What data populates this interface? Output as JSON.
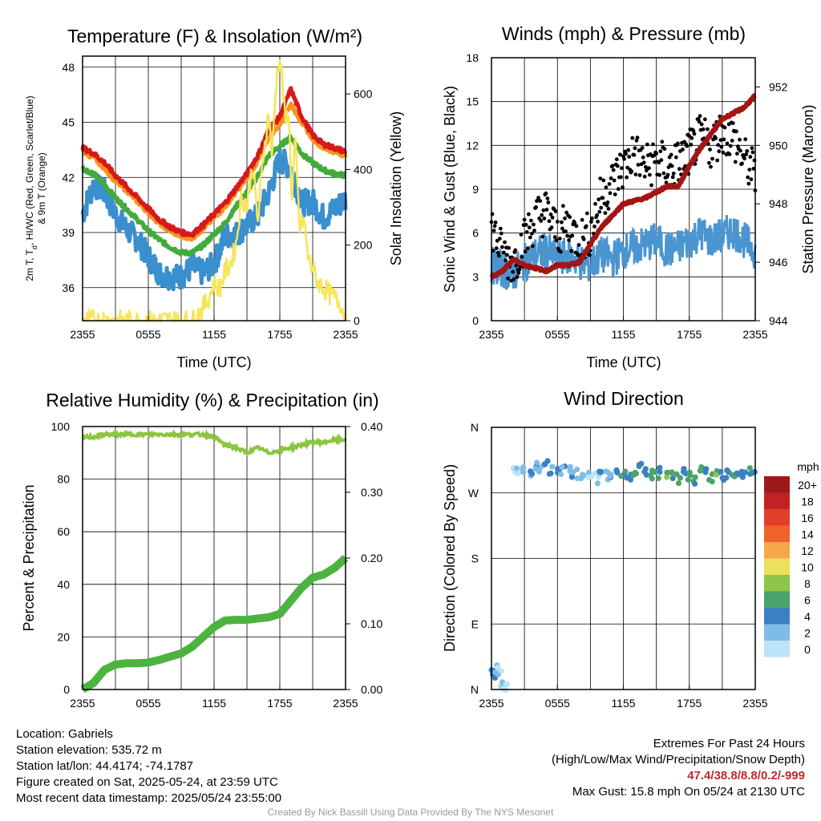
{
  "colors": {
    "temp": "#d7191c",
    "dewpoint": "#3a8fcf",
    "wind_chill": "#f46d2a",
    "t9m": "#f7941e",
    "heat_index_green": "#41ab3c",
    "solar": "#f7e55a",
    "wind": "#4a95d0",
    "gust": "#000000",
    "pressure": "#a31515",
    "rh": "#8bc541",
    "precip": "#4cb33f",
    "extremes": "#c2272d",
    "credit": "#999999"
  },
  "time_ticks": [
    "2355",
    "0555",
    "1155",
    "1755",
    "2355"
  ],
  "chart_data": [
    {
      "type": "line",
      "title": "Temperature (F) & Insolation (W/m²)",
      "xlabel": "Time (UTC)",
      "ylabel_lines": [
        "2m T, T",
        "d",
        ", HI/WC (Red, Green, Scarlet/Blue)",
        "& 9m T (Orange)"
      ],
      "y2label": "Solar Insolation (Yellow)",
      "x_ticks": [
        "2355",
        "0555",
        "1155",
        "1755",
        "2355"
      ],
      "ylim": [
        34.2,
        48.6
      ],
      "y_ticks": [
        36,
        39,
        42,
        45,
        48
      ],
      "y2lim": [
        0,
        700
      ],
      "y2_ticks": [
        0,
        200,
        400,
        600
      ],
      "x_hours": [
        0,
        1,
        2,
        3,
        4,
        5,
        6,
        7,
        8,
        9,
        10,
        11,
        12,
        13,
        14,
        15,
        16,
        17,
        18,
        19,
        20,
        21,
        22,
        23,
        24
      ],
      "series": [
        {
          "name": "2m T",
          "color": "#d7191c",
          "values": [
            43.6,
            43.3,
            42.8,
            42.1,
            41.5,
            40.9,
            40.3,
            39.7,
            39.3,
            39.0,
            38.9,
            39.4,
            40.0,
            40.6,
            41.4,
            42.2,
            43.2,
            44.6,
            45.3,
            46.8,
            45.3,
            44.3,
            43.8,
            43.6,
            43.4
          ]
        },
        {
          "name": "9m T",
          "color": "#f7941e",
          "values": [
            43.4,
            43.1,
            42.5,
            41.8,
            41.3,
            40.7,
            40.1,
            39.5,
            39.1,
            38.8,
            38.7,
            39.2,
            39.8,
            40.4,
            41.2,
            42.0,
            42.9,
            44.2,
            44.9,
            46.0,
            45.0,
            44.1,
            43.6,
            43.4,
            43.2
          ]
        },
        {
          "name": "HI/WC",
          "color": "#41ab3c",
          "values": [
            42.5,
            42.2,
            41.6,
            40.9,
            40.3,
            39.7,
            39.1,
            38.6,
            38.2,
            37.9,
            37.9,
            38.3,
            38.9,
            39.5,
            40.4,
            41.2,
            42.1,
            43.2,
            43.7,
            44.2,
            43.3,
            42.8,
            42.4,
            42.2,
            42.1
          ]
        },
        {
          "name": "Td",
          "color": "#3a8fcf",
          "values": [
            40.0,
            41.6,
            41.2,
            40.0,
            39.2,
            38.6,
            37.7,
            36.8,
            36.6,
            36.6,
            37.1,
            36.8,
            37.3,
            38.8,
            38.9,
            39.4,
            39.9,
            41.2,
            43.0,
            42.5,
            40.6,
            40.7,
            39.8,
            40.3,
            40.8
          ]
        }
      ],
      "solar": {
        "name": "Solar Insolation",
        "color": "#f7e55a",
        "x_hours": [
          0,
          6,
          7,
          8,
          9,
          10,
          11,
          11.5,
          12,
          12.5,
          13,
          13.5,
          14,
          14.5,
          15,
          15.5,
          16,
          16.5,
          17,
          17.3,
          17.6,
          17.9,
          18.2,
          18.5,
          18.8,
          19.1,
          19.4,
          19.8,
          20.2,
          20.6,
          21,
          21.5,
          22,
          22.5,
          23,
          23.5,
          24
        ],
        "values": [
          0,
          0,
          0,
          0,
          0,
          0,
          35,
          60,
          100,
          85,
          130,
          150,
          200,
          330,
          300,
          420,
          260,
          440,
          550,
          430,
          600,
          700,
          650,
          520,
          560,
          320,
          480,
          240,
          270,
          160,
          140,
          100,
          90,
          70,
          60,
          50,
          10
        ]
      }
    },
    {
      "type": "line",
      "title": "Winds (mph) & Pressure (mb)",
      "xlabel": "Time (UTC)",
      "ylabel": "Sonic Wind & Gust (Blue, Black)",
      "y2label": "Station Pressure (Maroon)",
      "x_ticks": [
        "2355",
        "0555",
        "1155",
        "1755",
        "2355"
      ],
      "ylim": [
        0,
        18
      ],
      "y_ticks": [
        0,
        3,
        6,
        9,
        12,
        15,
        18
      ],
      "y2lim": [
        944,
        953
      ],
      "y2_ticks": [
        944,
        946,
        948,
        950,
        952
      ],
      "x_hours": [
        0,
        1,
        2,
        3,
        4,
        5,
        6,
        7,
        8,
        9,
        10,
        11,
        12,
        13,
        14,
        15,
        16,
        17,
        18,
        19,
        20,
        21,
        22,
        23,
        24
      ],
      "series": [
        {
          "name": "Sonic Wind",
          "color": "#4a95d0",
          "values": [
            3.8,
            3.5,
            3.2,
            4.0,
            4.5,
            4.8,
            4.2,
            4.5,
            4.0,
            3.8,
            4.5,
            4.2,
            4.8,
            5.0,
            5.2,
            5.5,
            4.8,
            5.0,
            5.5,
            6.0,
            5.5,
            5.8,
            6.2,
            5.5,
            4.8
          ]
        },
        {
          "name": "Gust",
          "color": "#000000",
          "values": [
            6.5,
            4.5,
            4.0,
            5.5,
            7.0,
            7.5,
            6.0,
            6.5,
            5.5,
            6.0,
            8.5,
            9.5,
            10.5,
            11.5,
            10.5,
            11.0,
            10.5,
            10.8,
            11.5,
            12.5,
            12.0,
            13.0,
            12.5,
            11.0,
            10.0
          ]
        },
        {
          "name": "Station Pressure",
          "color": "#a31515",
          "values": [
            945.5,
            945.7,
            946.1,
            945.9,
            945.8,
            945.7,
            945.9,
            945.9,
            946.0,
            946.6,
            947.2,
            947.6,
            948.0,
            948.1,
            948.2,
            948.4,
            948.6,
            948.6,
            949.3,
            949.9,
            950.4,
            950.9,
            951.1,
            951.3,
            951.7
          ]
        }
      ]
    },
    {
      "type": "line",
      "title": "Relative Humidity (%) & Precipitation (in)",
      "xlabel": "",
      "ylabel": "Percent & Precipitation",
      "x_ticks": [
        "2355",
        "0555",
        "1155",
        "1755",
        "2355"
      ],
      "ylim": [
        0,
        100
      ],
      "y_ticks": [
        0,
        20,
        40,
        60,
        80,
        100
      ],
      "y2lim": [
        0,
        0.4
      ],
      "y2_ticks": [
        "0.00",
        "0.10",
        "0.20",
        "0.30",
        "0.40"
      ],
      "x_hours": [
        0,
        1,
        2,
        3,
        4,
        5,
        6,
        7,
        8,
        9,
        10,
        11,
        12,
        13,
        14,
        15,
        16,
        17,
        18,
        19,
        20,
        21,
        22,
        23,
        24
      ],
      "series": [
        {
          "name": "RH",
          "color": "#8bc541",
          "values": [
            96,
            96,
            97,
            97,
            97,
            97,
            97,
            97,
            97,
            97,
            97,
            97,
            96,
            93,
            92,
            90,
            92,
            90,
            91,
            92,
            93,
            94,
            94,
            95,
            95
          ]
        },
        {
          "name": "Precipitation",
          "color": "#4cb33f",
          "values": [
            0.0,
            0.01,
            0.03,
            0.038,
            0.04,
            0.04,
            0.041,
            0.045,
            0.05,
            0.055,
            0.065,
            0.08,
            0.095,
            0.105,
            0.106,
            0.106,
            0.108,
            0.11,
            0.115,
            0.135,
            0.155,
            0.17,
            0.175,
            0.185,
            0.2
          ]
        }
      ]
    },
    {
      "type": "scatter",
      "title": "Wind Direction",
      "ylabel": "Direction (Colored By Speed)",
      "x_ticks": [
        "2355",
        "0555",
        "1155",
        "1755",
        "2355"
      ],
      "y_ticks": [
        "N",
        "E",
        "S",
        "W",
        "N"
      ],
      "colorbar_label": "mph",
      "colorbar": [
        {
          "label": "20+",
          "color": "#9e1a1a"
        },
        {
          "label": "18",
          "color": "#c42222"
        },
        {
          "label": "16",
          "color": "#e0402a"
        },
        {
          "label": "14",
          "color": "#f0622b"
        },
        {
          "label": "12",
          "color": "#f7a64a"
        },
        {
          "label": "10",
          "color": "#ede05a"
        },
        {
          "label": "8",
          "color": "#8ec64a"
        },
        {
          "label": "6",
          "color": "#4ba56b"
        },
        {
          "label": "4",
          "color": "#3b80c2"
        },
        {
          "label": "2",
          "color": "#7fbde6"
        },
        {
          "label": "0",
          "color": "#bde3f7"
        }
      ],
      "x_hours": [
        0.1,
        0.3,
        0.5,
        0.7,
        0.9,
        1.1,
        1.3,
        2.0,
        2.5,
        3.0,
        3.5,
        4.0,
        4.5,
        5.0,
        5.5,
        6.0,
        6.5,
        7.0,
        7.5,
        8.0,
        8.5,
        9.0,
        9.5,
        10.0,
        10.5,
        11.0,
        11.5,
        12.0,
        12.5,
        13.0,
        13.5,
        14.0,
        14.5,
        15.0,
        15.5,
        16.0,
        16.5,
        17.0,
        17.5,
        18.0,
        18.5,
        19.0,
        19.5,
        20.0,
        20.5,
        21.0,
        21.5,
        22.0,
        22.5,
        23.0,
        23.5,
        23.9
      ],
      "directions": [
        20,
        24,
        18,
        28,
        8,
        5,
        3,
        305,
        300,
        302,
        298,
        305,
        302,
        308,
        302,
        303,
        300,
        302,
        298,
        296,
        300,
        295,
        290,
        300,
        295,
        292,
        300,
        298,
        294,
        297,
        305,
        300,
        296,
        294,
        300,
        292,
        295,
        290,
        298,
        294,
        285,
        300,
        296,
        290,
        294,
        292,
        297,
        294,
        296,
        298,
        300,
        298
      ],
      "speeds": [
        5,
        4,
        3,
        2,
        2,
        1,
        1,
        2,
        2,
        3,
        4,
        4,
        3,
        5,
        4,
        5,
        4,
        3,
        4,
        4,
        3,
        2,
        2,
        4,
        3,
        4,
        5,
        6,
        5,
        7,
        6,
        5,
        7,
        6,
        5,
        8,
        6,
        7,
        5,
        7,
        6,
        8,
        6,
        7,
        8,
        5,
        6,
        7,
        6,
        5,
        6,
        5
      ]
    }
  ],
  "footer": {
    "location": "Location: Gabriels",
    "elevation": "Station elevation: 535.72 m",
    "latlon": "Station lat/lon: 44.4174; -74.1787",
    "created": "Figure created on Sat, 2025-05-24, at 23:59 UTC",
    "recent": "Most recent data timestamp: 2025/05/24 23:55:00",
    "extremes_title": "Extremes For Past 24 Hours",
    "extremes_legend": "(High/Low/Max Wind/Precipitation/Snow Depth)",
    "extremes_values": "47.4/38.8/8.8/0.2/-999",
    "max_gust": "Max Gust: 15.8 mph On 05/24 at 2130 UTC",
    "credit": "Created By Nick Bassill Using Data Provided By The NYS Mesonet"
  }
}
